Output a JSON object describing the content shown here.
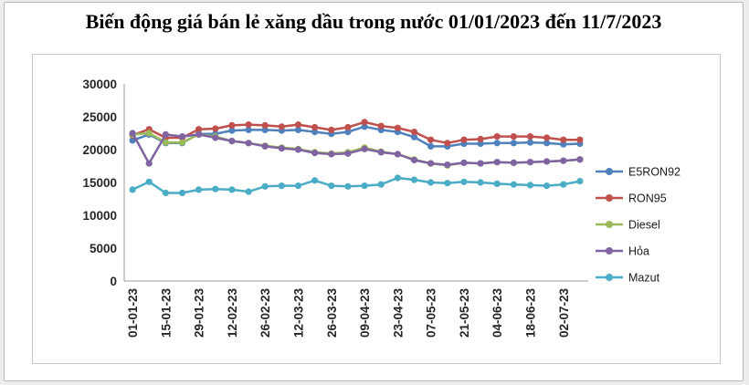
{
  "page": {
    "title": "Biến động giá bán lẻ xăng dầu trong nước 01/01/2023 đến 11/7/2023"
  },
  "chart_data": {
    "type": "line",
    "title": "Biến động giá bán lẻ xăng dầu trong nước 01/01/2023 đến 11/7/2023",
    "xlabel": "",
    "ylabel": "",
    "ylim": [
      0,
      30000
    ],
    "y_ticks": [
      0,
      5000,
      10000,
      15000,
      20000,
      25000,
      30000
    ],
    "grid": false,
    "legend_position": "right",
    "x_tick_labels": [
      "01-01-23",
      "15-01-23",
      "29-01-23",
      "12-02-23",
      "26-02-23",
      "12-03-23",
      "26-03-23",
      "09-04-23",
      "23-04-23",
      "07-05-23",
      "21-05-23",
      "04-06-23",
      "18-06-23",
      "02-07-23"
    ],
    "points_per_label": 2,
    "series": [
      {
        "name": "E5RON92",
        "color": "#4F81BD",
        "values": [
          21400,
          22300,
          21000,
          21000,
          22400,
          22400,
          22900,
          23000,
          23000,
          22900,
          23000,
          22700,
          22400,
          22700,
          23500,
          23000,
          22700,
          21900,
          20500,
          20500,
          20900,
          20900,
          21000,
          21000,
          21100,
          21000,
          20800,
          20900
        ]
      },
      {
        "name": "RON95",
        "color": "#C0504D",
        "values": [
          22200,
          23100,
          21800,
          21800,
          23100,
          23200,
          23700,
          23800,
          23700,
          23500,
          23800,
          23400,
          23000,
          23400,
          24200,
          23600,
          23300,
          22700,
          21500,
          21000,
          21500,
          21600,
          22000,
          22000,
          22000,
          21800,
          21500,
          21500
        ]
      },
      {
        "name": "Diesel",
        "color": "#9BBB59",
        "values": [
          22300,
          22500,
          21100,
          21100,
          22300,
          22000,
          21300,
          21000,
          20600,
          20300,
          20100,
          19600,
          19400,
          19600,
          20300,
          19700,
          19300,
          18500,
          17900,
          17600,
          18000,
          17900,
          18100,
          18000,
          18100,
          18200,
          18300,
          18500
        ]
      },
      {
        "name": "Hỏa",
        "color": "#8064A2",
        "values": [
          22500,
          17900,
          22300,
          22000,
          22300,
          21800,
          21300,
          21000,
          20500,
          20200,
          20000,
          19500,
          19300,
          19400,
          20100,
          19600,
          19300,
          18400,
          17900,
          17700,
          18000,
          17900,
          18100,
          18000,
          18100,
          18200,
          18300,
          18500
        ]
      },
      {
        "name": "Mazut",
        "color": "#4BACC6",
        "values": [
          13900,
          15100,
          13400,
          13400,
          13900,
          14000,
          13900,
          13600,
          14400,
          14500,
          14500,
          15300,
          14500,
          14400,
          14500,
          14700,
          15700,
          15400,
          15000,
          14900,
          15100,
          15000,
          14800,
          14700,
          14600,
          14500,
          14700,
          15200
        ]
      }
    ]
  }
}
